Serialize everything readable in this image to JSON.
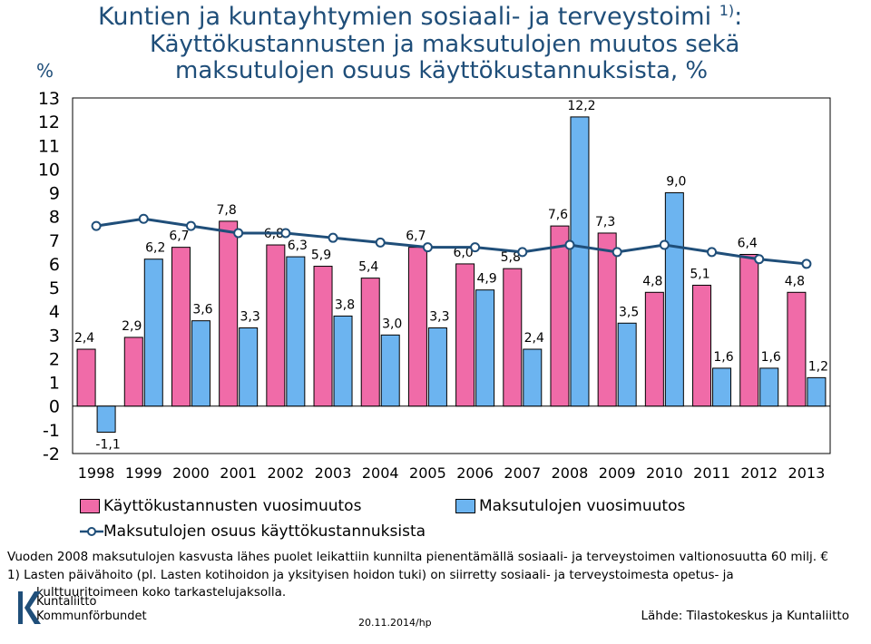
{
  "title": {
    "line1": "Kuntien ja kuntayhtymien sosiaali- ja terveystoimi",
    "line1_sup": "1)",
    "line1_tail": ":",
    "line2": "Käyttökustannusten ja maksutulojen muutos sekä",
    "line3": "maksutulojen osuus käyttökustannuksista, %"
  },
  "unit_label": "%",
  "legend": {
    "cost_change": "Käyttökustannusten vuosimuutos",
    "fee_change": "Maksutulojen vuosimuutos",
    "fee_share": "Maksutulojen osuus käyttökustannuksista"
  },
  "notes": {
    "note1": "Vuoden 2008 maksutulojen kasvusta lähes puolet leikattiin kunnilta pienentämällä sosiaali- ja terveystoimen  valtionosuutta 60 milj. €",
    "note2": "1) Lasten päivähoito (pl. Lasten kotihoidon ja yksityisen hoidon tuki) on siirretty sosiaali- ja terveystoimesta  opetus- ja",
    "note3": "kulttuuritoimeen  koko tarkastelujaksolla."
  },
  "source": "Lähde: Tilastokeskus ja Kuntaliitto",
  "date": "20.11.2014/hp",
  "logo": {
    "line1": "Kuntaliitto",
    "line2": "Kommunförbundet"
  },
  "colors": {
    "cost": "#f06ba8",
    "fee": "#6cb4f0",
    "share_line": "#1f4e79",
    "title": "#1f4e79"
  },
  "chart_data": {
    "type": "bar",
    "categories": [
      "1998",
      "1999",
      "2000",
      "2001",
      "2002",
      "2003",
      "2004",
      "2005",
      "2006",
      "2007",
      "2008",
      "2009",
      "2010",
      "2011",
      "2012",
      "2013"
    ],
    "ylim": [
      -2,
      13
    ],
    "yticks": [
      -2,
      -1,
      0,
      1,
      2,
      3,
      4,
      5,
      6,
      7,
      8,
      9,
      10,
      11,
      12,
      13
    ],
    "series": [
      {
        "name": "Käyttökustannusten vuosimuutos",
        "kind": "bar",
        "values": [
          2.4,
          2.9,
          6.7,
          7.8,
          6.8,
          5.9,
          5.4,
          6.7,
          6.0,
          5.8,
          7.6,
          7.3,
          4.8,
          5.1,
          6.4,
          4.8
        ],
        "labels": [
          "2,4",
          "2,9",
          "6,7",
          "7,8",
          "6,8",
          "5,9",
          "5,4",
          "6,7",
          "6,0",
          "5,8",
          "7,6",
          "7,3",
          "4,8",
          "5,1",
          "6,4",
          "4,8"
        ]
      },
      {
        "name": "Maksutulojen vuosimuutos",
        "kind": "bar",
        "values": [
          -1.1,
          6.2,
          3.6,
          3.3,
          6.3,
          3.8,
          3.0,
          3.3,
          4.9,
          2.4,
          12.2,
          3.5,
          9.0,
          1.6,
          1.6,
          1.2
        ],
        "labels": [
          "-1,1",
          "6,2",
          "3,6",
          "3,3",
          "6,3",
          "3,8",
          "3,0",
          "3,3",
          "4,9",
          "2,4",
          "12,2",
          "3,5",
          "9,0",
          "1,6",
          "1,6",
          "1,2"
        ]
      },
      {
        "name": "Maksutulojen osuus käyttökustannuksista",
        "kind": "line",
        "values": [
          7.6,
          7.9,
          7.6,
          7.3,
          7.3,
          7.1,
          6.9,
          6.7,
          6.7,
          6.5,
          6.8,
          6.5,
          6.8,
          6.5,
          6.2,
          6.0
        ]
      }
    ]
  }
}
